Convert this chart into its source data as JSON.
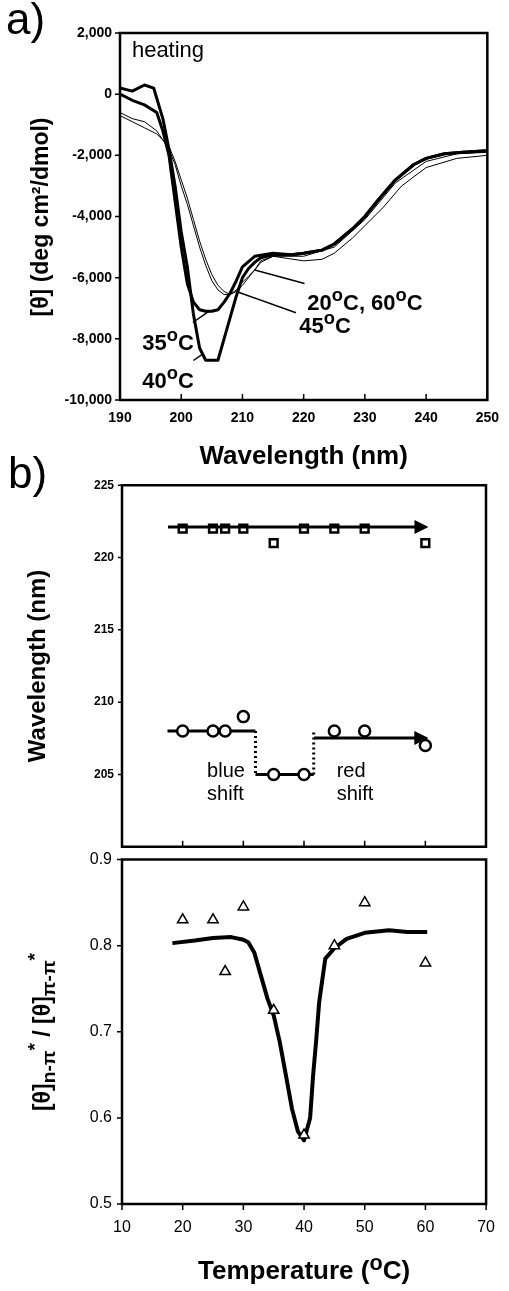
{
  "chart_data": [
    {
      "type": "line",
      "title": "a)",
      "xlabel": "Wavelength (nm)",
      "ylabel": "[θ] (deg cm²/dmol)",
      "xlim": [
        190,
        250
      ],
      "xticks": [
        190,
        200,
        210,
        220,
        230,
        240,
        250
      ],
      "ylim": [
        -10000,
        2000
      ],
      "yticks": [
        {
          "value": -10000,
          "label": "-10,000"
        },
        {
          "value": -8000,
          "label": "-8,000"
        },
        {
          "value": -6000,
          "label": "-6,000"
        },
        {
          "value": -4000,
          "label": "-4,000"
        },
        {
          "value": -2000,
          "label": "-2,000"
        },
        {
          "value": 0,
          "label": "0"
        },
        {
          "value": 2000,
          "label": "2,000"
        }
      ],
      "grid": false,
      "legend": false,
      "marker": "none",
      "line_style": "solid",
      "annotations": [
        "heating",
        {
          "text": "20$^{o}$C, 60$^{o}$C",
          "x": 212,
          "y": -5750
        },
        {
          "text": "45$^{o}$C",
          "x": 209,
          "y": -6450
        },
        {
          "text": "35$^{o}$C",
          "x": 204.5,
          "y": -7100
        },
        {
          "text": "40$^{o}$C",
          "x": 203.5,
          "y": -8500
        }
      ],
      "series": [
        {
          "color": "#000000",
          "x": [
            190,
            192,
            194,
            196,
            198,
            199,
            200,
            201,
            202,
            203,
            204,
            205,
            206,
            207,
            208,
            209,
            210,
            211,
            212,
            213,
            215,
            220,
            223,
            225,
            228,
            230,
            233,
            236,
            240,
            245,
            250
          ],
          "values": [
            -600,
            -800,
            -900,
            -1200,
            -1800,
            -2300,
            -3000,
            -3600,
            -4300,
            -5000,
            -5600,
            -6100,
            -6400,
            -6550,
            -6550,
            -6400,
            -6150,
            -5950,
            -5750,
            -5450,
            -5300,
            -5450,
            -5400,
            -5200,
            -4700,
            -4300,
            -3700,
            -3000,
            -2400,
            -2100,
            -2000
          ]
        },
        {
          "color": "#000000",
          "x": [
            190,
            192,
            194,
            196,
            198,
            199,
            200,
            201,
            202,
            203,
            204,
            205,
            206,
            207,
            208,
            209,
            210,
            211,
            212,
            213,
            215,
            220,
            225,
            230,
            235,
            240,
            245,
            250
          ],
          "values": [
            -700,
            -900,
            -1100,
            -1300,
            -1700,
            -2200,
            -2800,
            -3400,
            -4100,
            -4800,
            -5400,
            -5900,
            -6250,
            -6450,
            -6550,
            -6450,
            -6250,
            -6000,
            -5750,
            -5500,
            -5300,
            -5300,
            -5000,
            -4100,
            -2900,
            -2200,
            -1950,
            -1900
          ]
        },
        {
          "color": "#000000",
          "x": [
            190,
            192,
            194,
            196,
            197,
            198,
            199,
            200,
            201,
            202,
            203,
            204,
            205,
            206,
            207,
            208,
            209,
            210,
            212,
            215,
            218,
            220,
            223,
            225,
            228,
            230,
            232,
            235,
            238,
            240,
            243,
            246,
            250
          ],
          "values": [
            0,
            -200,
            -350,
            -600,
            -1200,
            -2000,
            -3500,
            -5000,
            -6200,
            -6800,
            -7050,
            -7100,
            -7100,
            -7050,
            -6800,
            -6500,
            -6100,
            -5650,
            -5300,
            -5200,
            -5250,
            -5200,
            -5100,
            -4900,
            -4400,
            -4000,
            -3500,
            -2800,
            -2300,
            -2100,
            -1950,
            -1900,
            -1850
          ]
        },
        {
          "color": "#000000",
          "x": [
            190,
            192,
            194,
            195.5,
            197,
            198,
            199,
            200,
            201,
            202,
            203,
            204,
            205,
            206,
            207,
            208,
            209,
            210,
            211,
            212,
            213,
            215,
            218,
            220,
            223,
            225,
            228,
            230,
            232,
            235,
            238,
            240,
            243,
            246,
            250
          ],
          "values": [
            200,
            100,
            300,
            200,
            -800,
            -1800,
            -3000,
            -4500,
            -5650,
            -7200,
            -8300,
            -8700,
            -8700,
            -8700,
            -8000,
            -7300,
            -6600,
            -6000,
            -5700,
            -5500,
            -5350,
            -5250,
            -5250,
            -5200,
            -5100,
            -4900,
            -4400,
            -4000,
            -3500,
            -2800,
            -2300,
            -2100,
            -1950,
            -1900,
            -1850
          ]
        }
      ]
    },
    {
      "type": "scatter",
      "title": "b)",
      "ylabel": "Wavelength (nm)",
      "xlim": [
        10,
        70
      ],
      "xticks": [
        10,
        20,
        30,
        40,
        50,
        60,
        70
      ],
      "ylim": [
        200,
        225
      ],
      "yticks": [
        205,
        210,
        215,
        220,
        225
      ],
      "tick_labels": "y",
      "grid": false,
      "legend": false,
      "annotations": [
        "blue shift",
        "red shift"
      ],
      "series": [
        {
          "type": "scatter",
          "marker": "square",
          "color": "#000000",
          "x": [
            20,
            25,
            27,
            30,
            35,
            40,
            45,
            50,
            60
          ],
          "values": [
            222,
            222,
            222,
            222,
            221,
            222,
            222,
            222,
            221
          ]
        },
        {
          "type": "scatter",
          "marker": "circle",
          "color": "#000000",
          "x": [
            20,
            25,
            27,
            30,
            35,
            40,
            45,
            50,
            60
          ],
          "values": [
            208,
            208,
            208,
            209,
            205,
            205,
            208,
            208,
            207
          ]
        },
        {
          "type": "line",
          "marker": "none",
          "line_style": "solid",
          "color": "#000000",
          "x": [
            17.5,
            32
          ],
          "values": [
            208,
            208
          ]
        },
        {
          "type": "line",
          "marker": "none",
          "line_style": "dotted",
          "color": "#000000",
          "x": [
            32,
            32
          ],
          "values": [
            208,
            205
          ]
        },
        {
          "type": "line",
          "marker": "none",
          "line_style": "solid",
          "color": "#000000",
          "x": [
            32,
            41.6
          ],
          "values": [
            205,
            205
          ]
        },
        {
          "type": "line",
          "marker": "none",
          "line_style": "dotted",
          "color": "#000000",
          "x": [
            41.6,
            41.6
          ],
          "values": [
            205,
            208
          ]
        }
      ]
    },
    {
      "type": "scatter",
      "xlabel": "Temperature ($^{o}$C)",
      "ylabel": "[θ]$_{n-π}$$^{*}$ / [θ]$_{π-π}$$^{*}$",
      "xlim": [
        10,
        70
      ],
      "xticks": [
        10,
        20,
        30,
        40,
        50,
        60,
        70
      ],
      "ylim": [
        0.5,
        0.9
      ],
      "yticks": [
        0.5,
        0.6,
        0.7,
        0.8,
        0.9
      ],
      "grid": false,
      "legend": false,
      "series": [
        {
          "type": "scatter",
          "marker": "triangle",
          "color": "#000000",
          "x": [
            20,
            25,
            27,
            30,
            35,
            40,
            45,
            50,
            60
          ],
          "values": [
            0.83,
            0.83,
            0.77,
            0.845,
            0.725,
            0.58,
            0.8,
            0.85,
            0.78
          ]
        },
        {
          "type": "line",
          "marker": "none",
          "line_style": "solid",
          "color": "#000000",
          "x": [
            18.3,
            22,
            25,
            28,
            30,
            30.8,
            31.8,
            32.9,
            34,
            35,
            36,
            37,
            38,
            39,
            40,
            41,
            41.5,
            42,
            42.5,
            43.5,
            45,
            47,
            50,
            54,
            57,
            60.3
          ],
          "values": [
            0.803,
            0.806,
            0.809,
            0.81,
            0.807,
            0.804,
            0.792,
            0.765,
            0.738,
            0.719,
            0.688,
            0.65,
            0.611,
            0.584,
            0.574,
            0.6,
            0.65,
            0.69,
            0.735,
            0.785,
            0.797,
            0.808,
            0.815,
            0.818,
            0.816,
            0.816
          ]
        }
      ]
    }
  ]
}
